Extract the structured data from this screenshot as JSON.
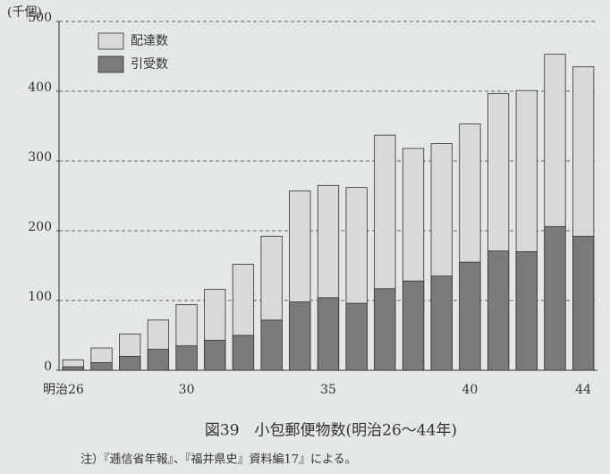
{
  "chart_data": {
    "type": "bar",
    "title": "図39　小包郵便物数(明治26～44年)",
    "note": "注）『逓信省年報』、『福井県史』資料編17』による。",
    "y_unit": "(千個)",
    "categories": [
      "明治26",
      null,
      null,
      null,
      "30",
      null,
      null,
      null,
      null,
      "35",
      null,
      null,
      null,
      null,
      "40",
      null,
      null,
      null,
      "44"
    ],
    "series": [
      {
        "name": "配達数",
        "color": "#d9d9d9",
        "values": [
          15,
          32,
          52,
          72,
          94,
          116,
          152,
          192,
          257,
          265,
          262,
          337,
          318,
          325,
          353,
          397,
          401,
          453,
          435
        ]
      },
      {
        "name": "引受数",
        "color": "#7a7a7a",
        "values": [
          5,
          11,
          20,
          30,
          35,
          43,
          50,
          72,
          98,
          104,
          96,
          117,
          128,
          135,
          155,
          171,
          170,
          206,
          192
        ]
      }
    ],
    "ylim": [
      0,
      500
    ],
    "yticks": [
      0,
      100,
      200,
      300,
      400,
      500
    ],
    "grid": true,
    "legend": "top-left"
  }
}
